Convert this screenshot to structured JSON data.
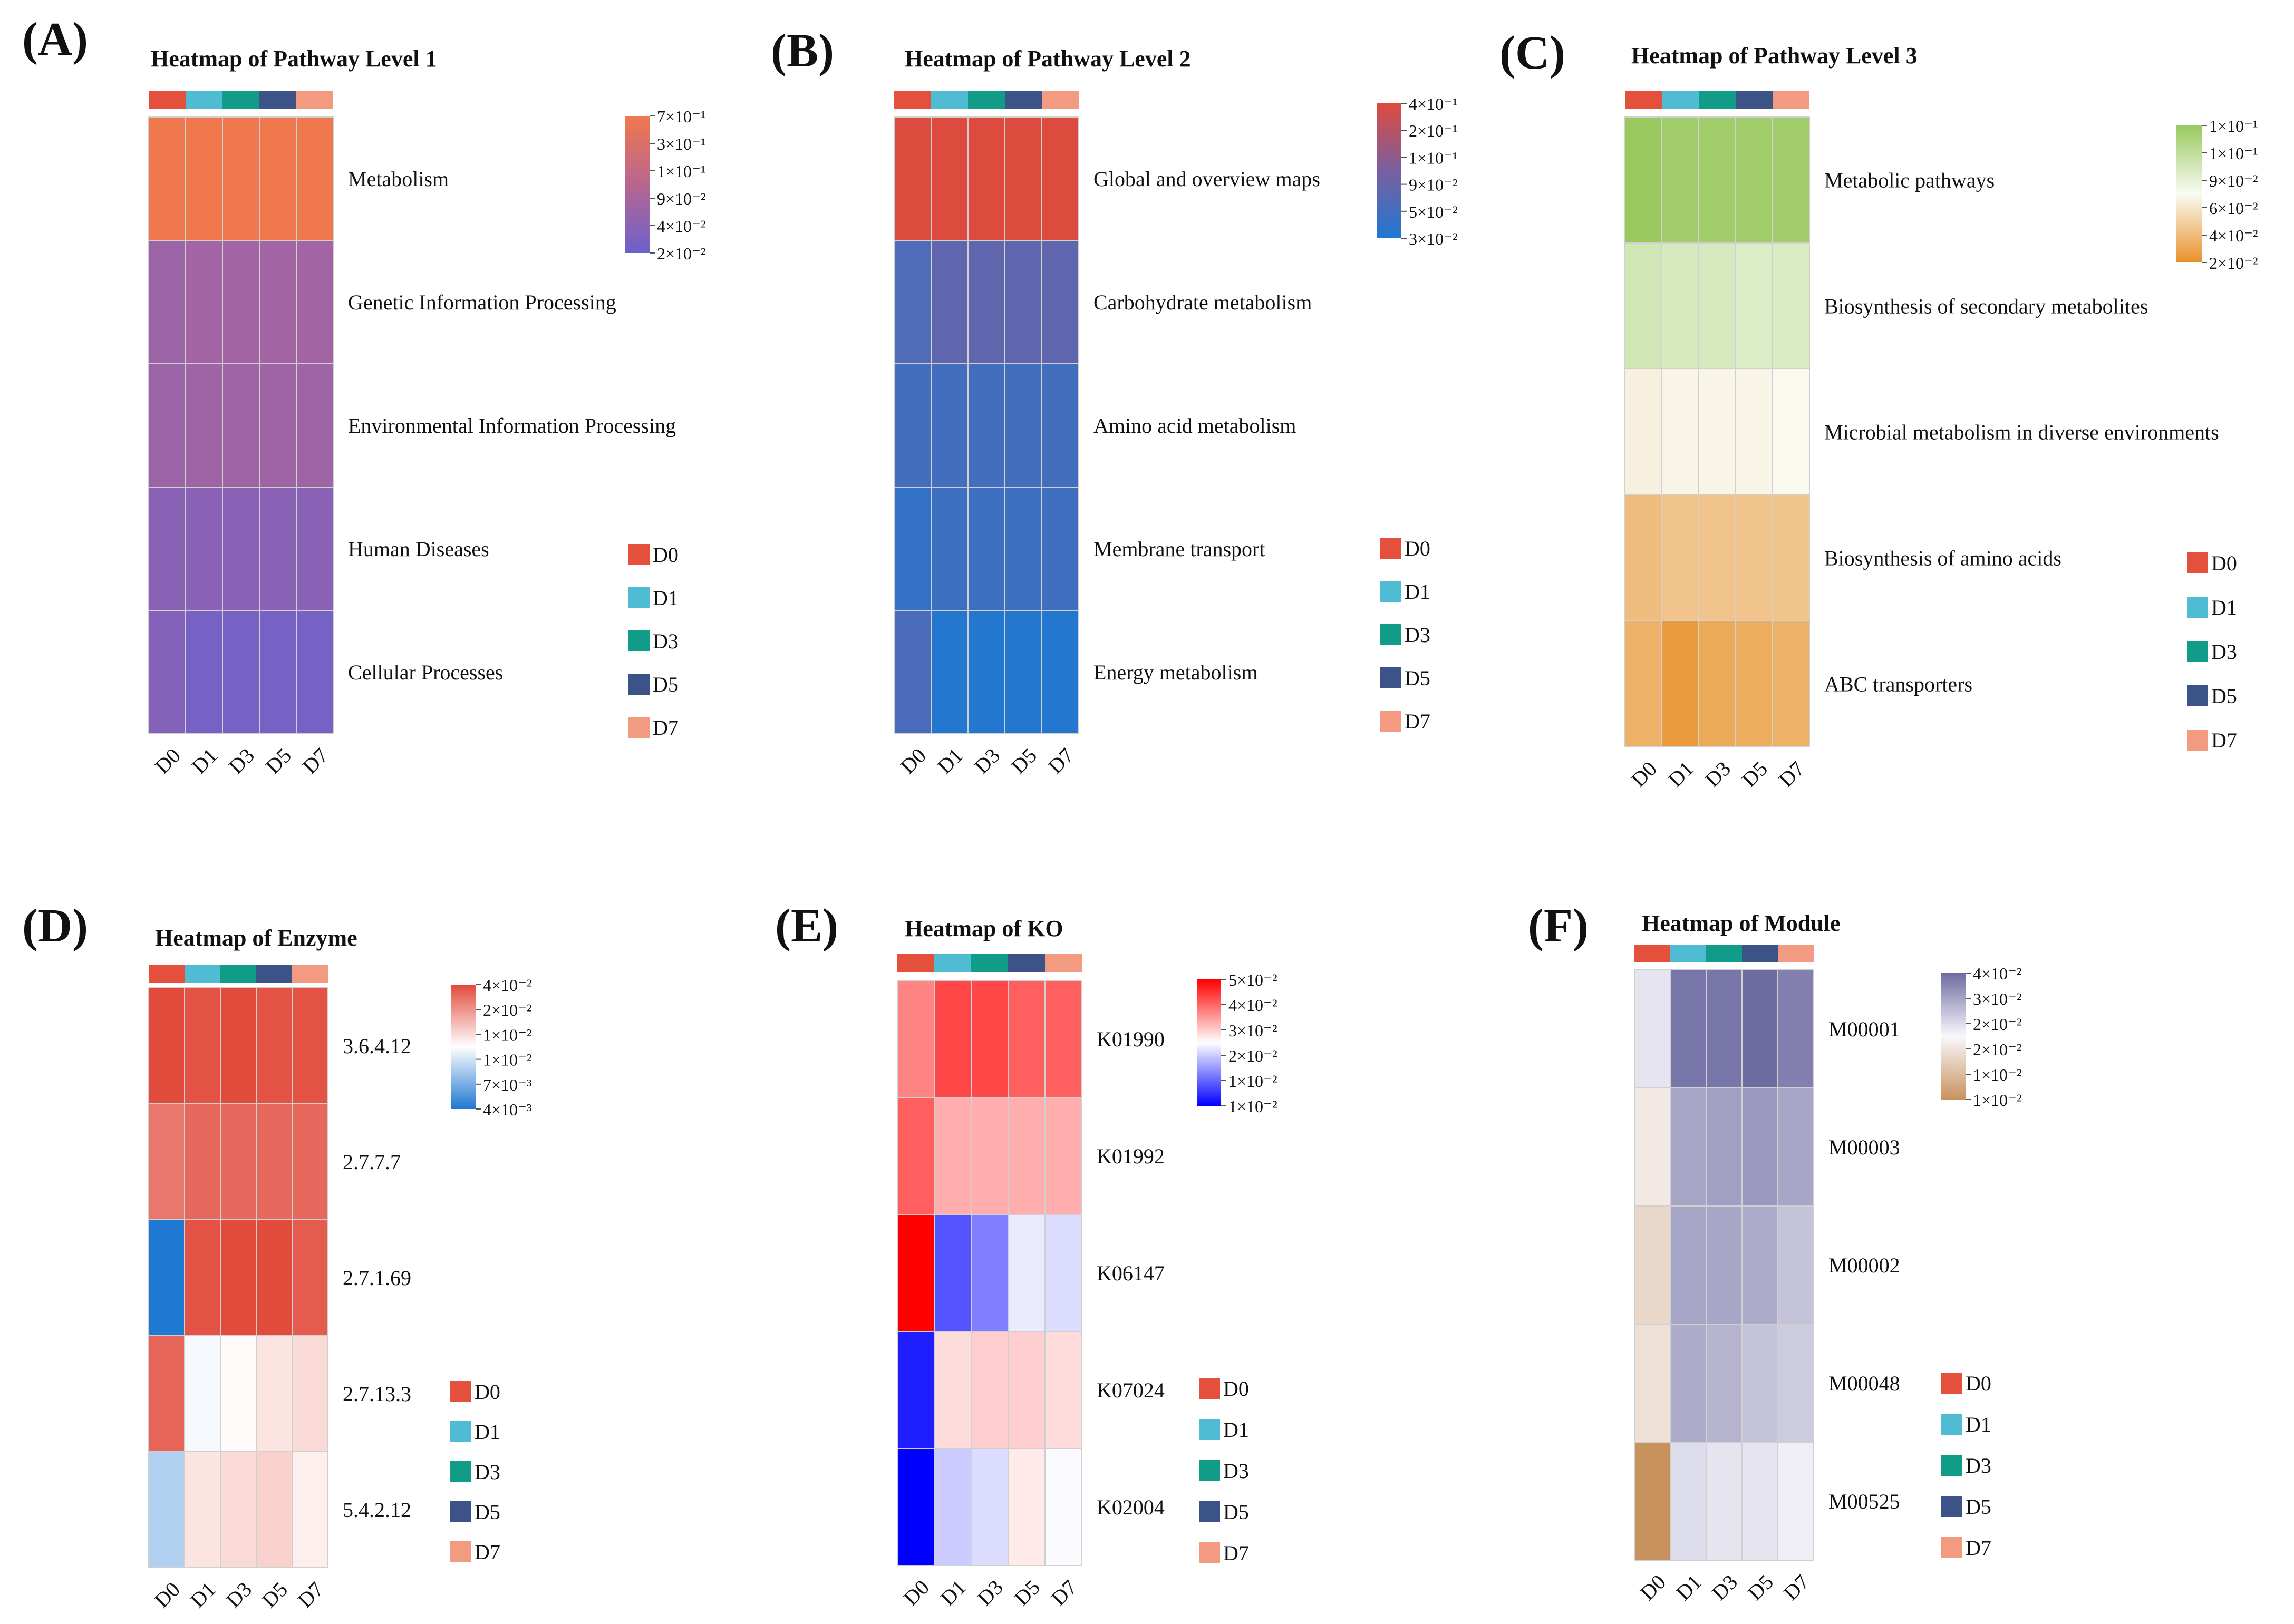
{
  "groups": {
    "labels": [
      "D0",
      "D1",
      "D3",
      "D5",
      "D7"
    ],
    "colors": [
      "#e5503d",
      "#4fbcd3",
      "#119c87",
      "#3b5387",
      "#f29b80"
    ]
  },
  "chart_data": [
    {
      "type": "heatmap",
      "panel": "(A)",
      "title": "Heatmap of Pathway Level 1",
      "rows": [
        "Metabolism",
        "Genetic Information Processing",
        "Environmental Information Processing",
        "Human Diseases",
        "Cellular Processes"
      ],
      "cols": [
        "D0",
        "D1",
        "D3",
        "D5",
        "D7"
      ],
      "values": [
        [
          0.7,
          0.7,
          0.7,
          0.7,
          0.7
        ],
        [
          0.06,
          0.07,
          0.07,
          0.07,
          0.07
        ],
        [
          0.06,
          0.065,
          0.065,
          0.065,
          0.065
        ],
        [
          0.04,
          0.04,
          0.04,
          0.04,
          0.04
        ],
        [
          0.035,
          0.025,
          0.025,
          0.025,
          0.025
        ]
      ],
      "colorbar": {
        "ticks": [
          "7×10⁻¹",
          "3×10⁻¹",
          "1×10⁻¹",
          "9×10⁻²",
          "4×10⁻²",
          "2×10⁻²"
        ],
        "stops": [
          "#6c60cc",
          "#b86690",
          "#f0784d"
        ],
        "vmin": 0.02,
        "vmax": 0.7,
        "log": true
      }
    },
    {
      "type": "heatmap",
      "panel": "(B)",
      "title": "Heatmap of Pathway Level 2",
      "rows": [
        "Global and overview maps",
        "Carbohydrate metabolism",
        "Amino acid metabolism",
        "Membrane transport",
        "Energy metabolism"
      ],
      "cols": [
        "D0",
        "D1",
        "D3",
        "D5",
        "D7"
      ],
      "values": [
        [
          0.4,
          0.4,
          0.4,
          0.4,
          0.4
        ],
        [
          0.06,
          0.075,
          0.075,
          0.075,
          0.075
        ],
        [
          0.05,
          0.05,
          0.05,
          0.05,
          0.05
        ],
        [
          0.04,
          0.046,
          0.046,
          0.046,
          0.048
        ],
        [
          0.055,
          0.032,
          0.032,
          0.032,
          0.032
        ]
      ],
      "colorbar": {
        "ticks": [
          "4×10⁻¹",
          "2×10⁻¹",
          "1×10⁻¹",
          "9×10⁻²",
          "5×10⁻²",
          "3×10⁻²"
        ],
        "stops": [
          "#1f78d1",
          "#7a5fa0",
          "#dd4b3e"
        ],
        "vmin": 0.03,
        "vmax": 0.4,
        "log": true
      }
    },
    {
      "type": "heatmap",
      "panel": "(C)",
      "title": "Heatmap of Pathway Level 3",
      "rows": [
        "Metabolic pathways",
        "Biosynthesis of secondary metabolites",
        "Microbial metabolism in diverse environments",
        "Biosynthesis of amino acids",
        "ABC transporters"
      ],
      "cols": [
        "D0",
        "D1",
        "D3",
        "D5",
        "D7"
      ],
      "values": [
        [
          0.14,
          0.13,
          0.13,
          0.13,
          0.13
        ],
        [
          0.08,
          0.075,
          0.075,
          0.07,
          0.072
        ],
        [
          0.048,
          0.05,
          0.05,
          0.05,
          0.052
        ],
        [
          0.03,
          0.032,
          0.032,
          0.032,
          0.032
        ],
        [
          0.027,
          0.022,
          0.025,
          0.026,
          0.027
        ]
      ],
      "colorbar": {
        "ticks": [
          "1×10⁻¹",
          "1×10⁻¹",
          "9×10⁻²",
          "6×10⁻²",
          "4×10⁻²",
          "2×10⁻²"
        ],
        "stops": [
          "#e8912a",
          "#f9fbf3",
          "#99c95f"
        ],
        "vmin": 0.02,
        "vmax": 0.14,
        "log": true
      }
    },
    {
      "type": "heatmap",
      "panel": "(D)",
      "title": "Heatmap of Enzyme",
      "rows": [
        "3.6.4.12",
        "2.7.7.7",
        "2.7.1.69",
        "2.7.13.3",
        "5.4.2.12"
      ],
      "cols": [
        "D0",
        "D1",
        "D3",
        "D5",
        "D7"
      ],
      "values": [
        [
          0.04,
          0.038,
          0.04,
          0.038,
          0.038
        ],
        [
          0.03,
          0.033,
          0.033,
          0.033,
          0.033
        ],
        [
          0.004,
          0.038,
          0.04,
          0.04,
          0.036
        ],
        [
          0.034,
          0.012,
          0.013,
          0.015,
          0.016
        ],
        [
          0.0085,
          0.015,
          0.016,
          0.017,
          0.014
        ]
      ],
      "colorbar": {
        "ticks": [
          "4×10⁻²",
          "2×10⁻²",
          "1×10⁻²",
          "1×10⁻²",
          "7×10⁻³",
          "4×10⁻³"
        ],
        "stops": [
          "#1f78d1",
          "#ffffff",
          "#e24a3c"
        ],
        "vmin": 0.004,
        "vmax": 0.04,
        "log": true
      }
    },
    {
      "type": "heatmap",
      "panel": "(E)",
      "title": "Heatmap of KO",
      "rows": [
        "K01990",
        "K01992",
        "K06147",
        "K07024",
        "K02004"
      ],
      "cols": [
        "D0",
        "D1",
        "D3",
        "D5",
        "D7"
      ],
      "values": [
        [
          0.033,
          0.04,
          0.04,
          0.037,
          0.037
        ],
        [
          0.037,
          0.029,
          0.029,
          0.029,
          0.029
        ],
        [
          0.05,
          0.013,
          0.015,
          0.021,
          0.02
        ],
        [
          0.011,
          0.025,
          0.026,
          0.026,
          0.025
        ],
        [
          0.01,
          0.019,
          0.02,
          0.024,
          0.022
        ]
      ],
      "colorbar": {
        "ticks": [
          "5×10⁻²",
          "4×10⁻²",
          "3×10⁻²",
          "2×10⁻²",
          "1×10⁻²",
          "1×10⁻²"
        ],
        "stops": [
          "#0000ff",
          "#ffffff",
          "#ff0000"
        ],
        "vmin": 0.01,
        "vmax": 0.05,
        "log": true
      }
    },
    {
      "type": "heatmap",
      "panel": "(F)",
      "title": "Heatmap of Module",
      "rows": [
        "M00001",
        "M00003",
        "M00002",
        "M00048",
        "M00525"
      ],
      "cols": [
        "D0",
        "D1",
        "D3",
        "D5",
        "D7"
      ],
      "values": [
        [
          0.022,
          0.038,
          0.038,
          0.04,
          0.036
        ],
        [
          0.018,
          0.03,
          0.031,
          0.032,
          0.03
        ],
        [
          0.016,
          0.03,
          0.03,
          0.029,
          0.026
        ],
        [
          0.017,
          0.029,
          0.028,
          0.026,
          0.025
        ],
        [
          0.01,
          0.023,
          0.022,
          0.022,
          0.021
        ]
      ],
      "colorbar": {
        "ticks": [
          "4×10⁻²",
          "3×10⁻²",
          "2×10⁻²",
          "2×10⁻²",
          "1×10⁻²",
          "1×10⁻²"
        ],
        "stops": [
          "#c8925f",
          "#f9f8fc",
          "#6e6ba1"
        ],
        "vmin": 0.01,
        "vmax": 0.04,
        "log": true
      }
    }
  ]
}
